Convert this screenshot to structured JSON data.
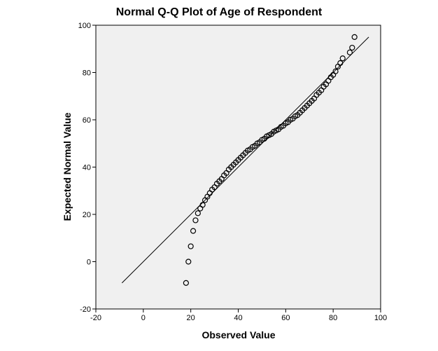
{
  "chart_data": {
    "type": "scatter",
    "title": "Normal Q-Q Plot of Age of Respondent",
    "x_label": "Observed Value",
    "y_label": "Expected Normal Value",
    "x": [
      18,
      19,
      20,
      21,
      22,
      23,
      24,
      25,
      26,
      27,
      28,
      29,
      30,
      31,
      32,
      33,
      34,
      35,
      36,
      37,
      38,
      39,
      40,
      41,
      42,
      43,
      44,
      45,
      46,
      47,
      48,
      49,
      50,
      51,
      52,
      53,
      54,
      55,
      56,
      57,
      58,
      59,
      60,
      61,
      62,
      63,
      64,
      65,
      66,
      67,
      68,
      69,
      70,
      71,
      72,
      73,
      74,
      75,
      76,
      77,
      78,
      79,
      80,
      81,
      82,
      83,
      84,
      87,
      88,
      89
    ],
    "y": [
      -9,
      0,
      6.5,
      13,
      17.5,
      20.5,
      22.5,
      24,
      26,
      27.5,
      29,
      30.5,
      31.5,
      33,
      34,
      35,
      36.5,
      37.5,
      39,
      40,
      41,
      42,
      43,
      44,
      45,
      46,
      47,
      47.5,
      48.5,
      49,
      50,
      50.5,
      51.5,
      52,
      53,
      53.5,
      54,
      55,
      55.5,
      56,
      57,
      57.5,
      58.5,
      59,
      60,
      60.5,
      61.5,
      62,
      63,
      64,
      65,
      66,
      67,
      68,
      69,
      70.5,
      71.5,
      72.5,
      74,
      75,
      76.5,
      78,
      79,
      80.5,
      82.5,
      84,
      86,
      88.5,
      90.5,
      95
    ],
    "reference_line": {
      "x": [
        -9,
        95
      ],
      "y": [
        -9,
        95
      ]
    },
    "xlim": [
      -20,
      100
    ],
    "xticks": [
      -20,
      0,
      20,
      40,
      60,
      80,
      100
    ],
    "ylim": [
      -20,
      100
    ],
    "yticks": [
      -20,
      0,
      20,
      40,
      60,
      80,
      100
    ],
    "grid": false
  }
}
